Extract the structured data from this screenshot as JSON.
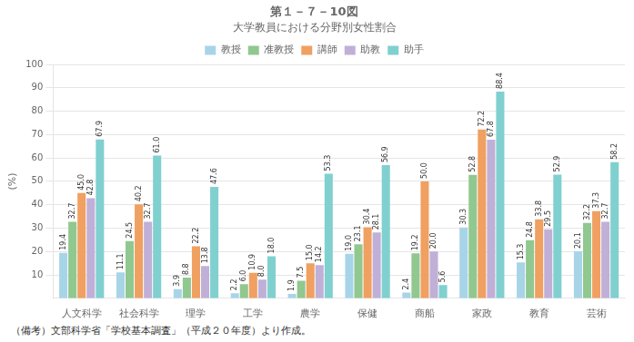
{
  "chart_data": {
    "type": "bar",
    "title": "第１－７－10図",
    "subtitle": "大学教員における分野別女性割合",
    "y_label": "(%)",
    "annotations": [
      "（備考）文部科学省「学校基本調査」（平成２０年度）より作成。"
    ],
    "categories": [
      "人文科学",
      "社会科学",
      "理学",
      "工学",
      "農学",
      "保健",
      "商船",
      "家政",
      "教育",
      "芸術"
    ],
    "series": [
      {
        "name": "教授",
        "color": "#a8d4e8",
        "values": [
          19.4,
          11.1,
          3.9,
          2.2,
          1.9,
          19.0,
          2.4,
          30.3,
          15.3,
          20.1
        ],
        "value_labels": [
          "19.4",
          "11.1",
          "3.9",
          "2.2",
          "1.9",
          "19.0",
          "2.4",
          "30.3",
          "15.3",
          "20.1"
        ]
      },
      {
        "name": "准教授",
        "color": "#90c890",
        "values": [
          32.7,
          24.5,
          8.8,
          6.0,
          7.5,
          23.1,
          19.2,
          52.8,
          24.8,
          32.2
        ],
        "value_labels": [
          "32.7",
          "24.5",
          "8.8",
          "6.0",
          "7.5",
          "23.1",
          "19.2",
          "52.8",
          "24.8",
          "32.2"
        ]
      },
      {
        "name": "講師",
        "color": "#f0a060",
        "values": [
          45.0,
          40.2,
          22.2,
          10.9,
          15.0,
          30.4,
          50.0,
          72.2,
          33.8,
          37.3
        ],
        "value_labels": [
          "45.0",
          "40.2",
          "22.2",
          "10.9",
          "15.0",
          "30.4",
          "50.0",
          "72.2",
          "33.8",
          "37.3"
        ]
      },
      {
        "name": "助教",
        "color": "#c0b0d8",
        "values": [
          42.8,
          32.7,
          13.8,
          8.0,
          14.2,
          28.1,
          20.0,
          67.8,
          29.5,
          32.7
        ],
        "value_labels": [
          "42.8",
          "32.7",
          "13.8",
          "8.0",
          "14.2",
          "28.1",
          "20.0",
          "67.8",
          "29.5",
          "32.7"
        ]
      },
      {
        "name": "助手",
        "color": "#80d0d0",
        "values": [
          67.9,
          61.0,
          47.6,
          18.0,
          53.3,
          56.9,
          5.6,
          88.4,
          52.9,
          58.2
        ],
        "value_labels": [
          "67.9",
          "61.0",
          "47.6",
          "18.0",
          "53.3",
          "56.9",
          "5.6",
          "88.4",
          "52.9",
          "58.2"
        ]
      }
    ],
    "ylim": [
      0,
      100
    ],
    "yticks": [
      10,
      20,
      30,
      40,
      50,
      60,
      70,
      80,
      90,
      100
    ],
    "grid": true,
    "legend": "top",
    "data_labels": true
  }
}
